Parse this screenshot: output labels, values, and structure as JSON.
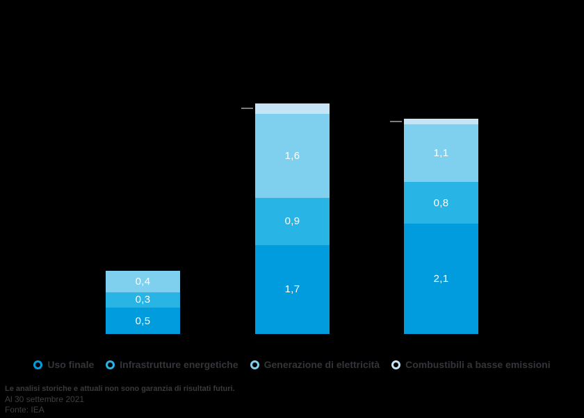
{
  "page": {
    "background_color": "#000000"
  },
  "chart_data": {
    "type": "bar",
    "stacked": true,
    "categories": [
      "",
      "",
      ""
    ],
    "series": [
      {
        "name": "Uso finale",
        "color": "#009cdd",
        "values": [
          0.5,
          1.7,
          2.1
        ],
        "labels": [
          "0,5",
          "1,7",
          "2,1"
        ]
      },
      {
        "name": "Infrastrutture energetiche",
        "color": "#29b4e6",
        "values": [
          0.3,
          0.9,
          0.8
        ],
        "labels": [
          "0,3",
          "0,9",
          "0,8"
        ]
      },
      {
        "name": "Generazione di elettricità",
        "color": "#7fcfef",
        "values": [
          0.4,
          1.6,
          1.1
        ],
        "labels": [
          "0,4",
          "1,6",
          "1,1"
        ]
      },
      {
        "name": "Combustibili a basse emissioni",
        "color": "#c5e5f6",
        "values": [
          0.0,
          0.2,
          0.1
        ],
        "labels": [
          "",
          "",
          ""
        ]
      }
    ],
    "value_label_color": "#ffffff",
    "callout_ticks": {
      "color": "#7d7d7d",
      "targets": [
        {
          "category_index": 1,
          "series_index": 3
        },
        {
          "category_index": 2,
          "series_index": 3
        }
      ]
    },
    "ylim": [
      0,
      4.45
    ],
    "grid": false,
    "axis_labels_visible": false,
    "legend_position": "bottom"
  },
  "legend": {
    "items": [
      {
        "label": "Uso finale",
        "color": "#009cdd"
      },
      {
        "label": "Infrastrutture energetiche",
        "color": "#29b4e6"
      },
      {
        "label": "Generazione di elettricità",
        "color": "#7fcfef"
      },
      {
        "label": "Combustibili a basse emissioni",
        "color": "#c5e5f6"
      }
    ]
  },
  "footnote": {
    "line1": "Le analisi storiche e attuali non sono garanzia di risultati futuri.",
    "line2": "Al 30 settembre 2021",
    "line3": "Fonte: IEA"
  }
}
